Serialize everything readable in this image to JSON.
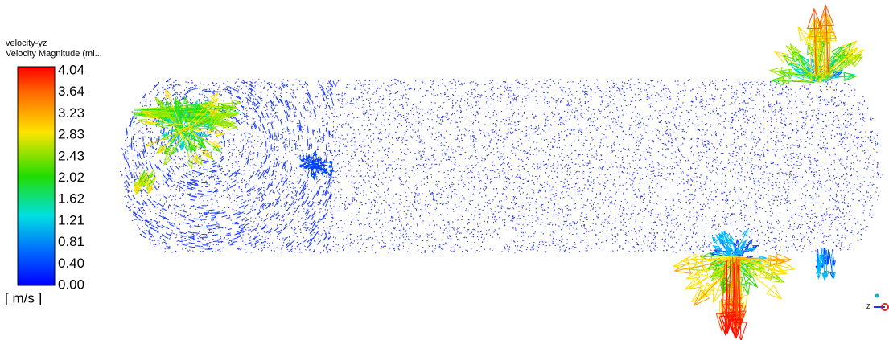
{
  "legend": {
    "name": "velocity-yz",
    "quantity": "Velocity Magnitude (mi...",
    "ticks": [
      "4.04",
      "3.64",
      "3.23",
      "2.83",
      "2.43",
      "2.02",
      "1.62",
      "1.21",
      "0.81",
      "0.40",
      "0.00"
    ],
    "unit": "[ m/s ]"
  },
  "triad": {
    "axis_label": "Z"
  }
}
